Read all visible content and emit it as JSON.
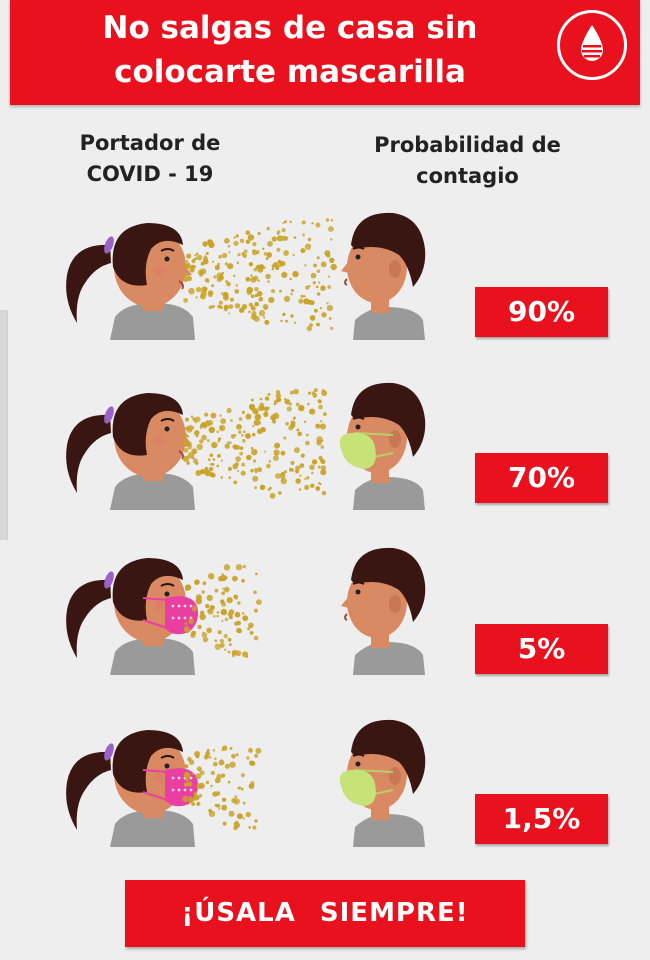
{
  "header": {
    "title": "No salgas de casa sin\ncolocarte mascarilla",
    "logo_icon": "blood-drop-icon"
  },
  "columns": {
    "left": "Portador  de\nCOVID - 19",
    "right": "Probabilidad de\ncontagio"
  },
  "rows": [
    {
      "carrier_mask": false,
      "receiver_mask": false,
      "probability": "90%"
    },
    {
      "carrier_mask": false,
      "receiver_mask": true,
      "probability": "70%"
    },
    {
      "carrier_mask": true,
      "receiver_mask": false,
      "probability": "5%"
    },
    {
      "carrier_mask": true,
      "receiver_mask": true,
      "probability": "1,5%"
    }
  ],
  "cta": "¡ÚSALA   SIEMPRE!",
  "colors": {
    "brand_red": "#e8111d",
    "droplet": "#c9a227",
    "carrier_mask": "#e83fa0",
    "receiver_mask": "#c8e27a",
    "hair": "#3a1612",
    "skin": "#d98a63",
    "shirt": "#9a9a9a"
  }
}
